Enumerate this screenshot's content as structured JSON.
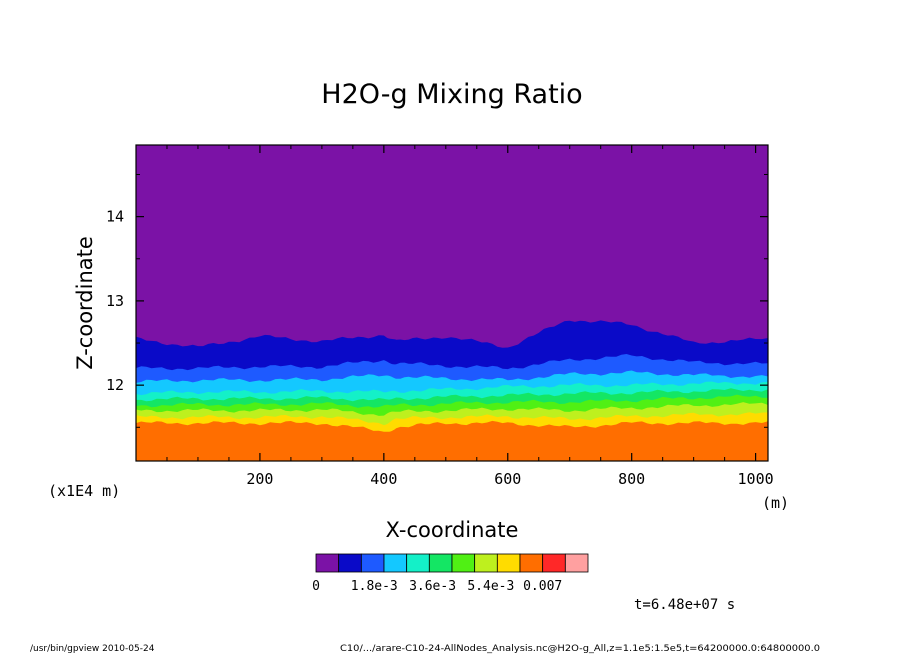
{
  "chart_data": {
    "type": "heatmap",
    "title": "H2O-g Mixing Ratio",
    "xlabel": "X-coordinate",
    "ylabel": "Z-coordinate",
    "x_unit": "(m)",
    "y_unit": "(x1E4 m)",
    "xlim": [
      0,
      1020
    ],
    "ylim": [
      11.1,
      14.85
    ],
    "x_ticks": [
      200,
      400,
      600,
      800,
      1000
    ],
    "y_ticks": [
      12,
      13,
      14
    ],
    "x_tick_labels": [
      "200",
      "400",
      "600",
      "800",
      "1000"
    ],
    "y_tick_labels": [
      "12",
      "13",
      "14"
    ],
    "colorbar": {
      "colors": [
        "#7b12a6",
        "#0a0ac8",
        "#1e5aff",
        "#14c8ff",
        "#14f0c8",
        "#14e664",
        "#50f014",
        "#bef01e",
        "#ffdc00",
        "#ff6e00",
        "#ff2828",
        "#ffa0a0"
      ],
      "tick_labels": [
        "0",
        "1.8e-3",
        "3.6e-3",
        "5.4e-3",
        "0.007"
      ],
      "tick_values": [
        0,
        0.0018,
        0.0036,
        0.0054,
        0.007
      ]
    },
    "time_label": "t=6.48e+07 s",
    "boundaries": {
      "x": [
        0,
        100,
        200,
        300,
        400,
        420,
        500,
        600,
        700,
        800,
        900,
        1020
      ],
      "levels": [
        {
          "color": "#ff6e00",
          "z": [
            11.55,
            11.55,
            11.55,
            11.55,
            11.45,
            11.5,
            11.55,
            11.55,
            11.5,
            11.55,
            11.55,
            11.55
          ]
        },
        {
          "color": "#ffdc00",
          "z": [
            11.62,
            11.62,
            11.62,
            11.63,
            11.55,
            11.6,
            11.62,
            11.63,
            11.6,
            11.63,
            11.65,
            11.66
          ]
        },
        {
          "color": "#bef01e",
          "z": [
            11.7,
            11.7,
            11.7,
            11.71,
            11.65,
            11.68,
            11.7,
            11.72,
            11.7,
            11.73,
            11.76,
            11.78
          ]
        },
        {
          "color": "#50f014",
          "z": [
            11.76,
            11.77,
            11.77,
            11.78,
            11.74,
            11.76,
            11.78,
            11.8,
            11.8,
            11.82,
            11.85,
            11.87
          ]
        },
        {
          "color": "#14e664",
          "z": [
            11.83,
            11.84,
            11.84,
            11.85,
            11.82,
            11.84,
            11.86,
            11.88,
            11.9,
            11.91,
            11.93,
            11.95
          ]
        },
        {
          "color": "#14f0c8",
          "z": [
            11.9,
            11.92,
            11.92,
            11.93,
            11.92,
            11.93,
            11.95,
            11.98,
            12.0,
            12.0,
            12.02,
            12.03
          ]
        },
        {
          "color": "#14c8ff",
          "z": [
            12.04,
            12.06,
            12.06,
            12.07,
            12.12,
            12.1,
            12.08,
            12.06,
            12.13,
            12.15,
            12.12,
            12.1
          ]
        },
        {
          "color": "#1e5aff",
          "z": [
            12.2,
            12.2,
            12.22,
            12.22,
            12.3,
            12.26,
            12.23,
            12.2,
            12.3,
            12.35,
            12.27,
            12.25
          ]
        },
        {
          "color": "#0a0ac8",
          "z": [
            12.55,
            12.45,
            12.58,
            12.52,
            12.6,
            12.52,
            12.58,
            12.45,
            12.78,
            12.72,
            12.5,
            12.55
          ]
        }
      ],
      "top_color": "#7b12a6"
    }
  },
  "footer": {
    "left": "/usr/bin/gpview  2010-05-24",
    "right": "C10/.../arare-C10-24-AllNodes_Analysis.nc@H2O-g_All,z=1.1e5:1.5e5,t=64200000.0:64800000.0"
  }
}
